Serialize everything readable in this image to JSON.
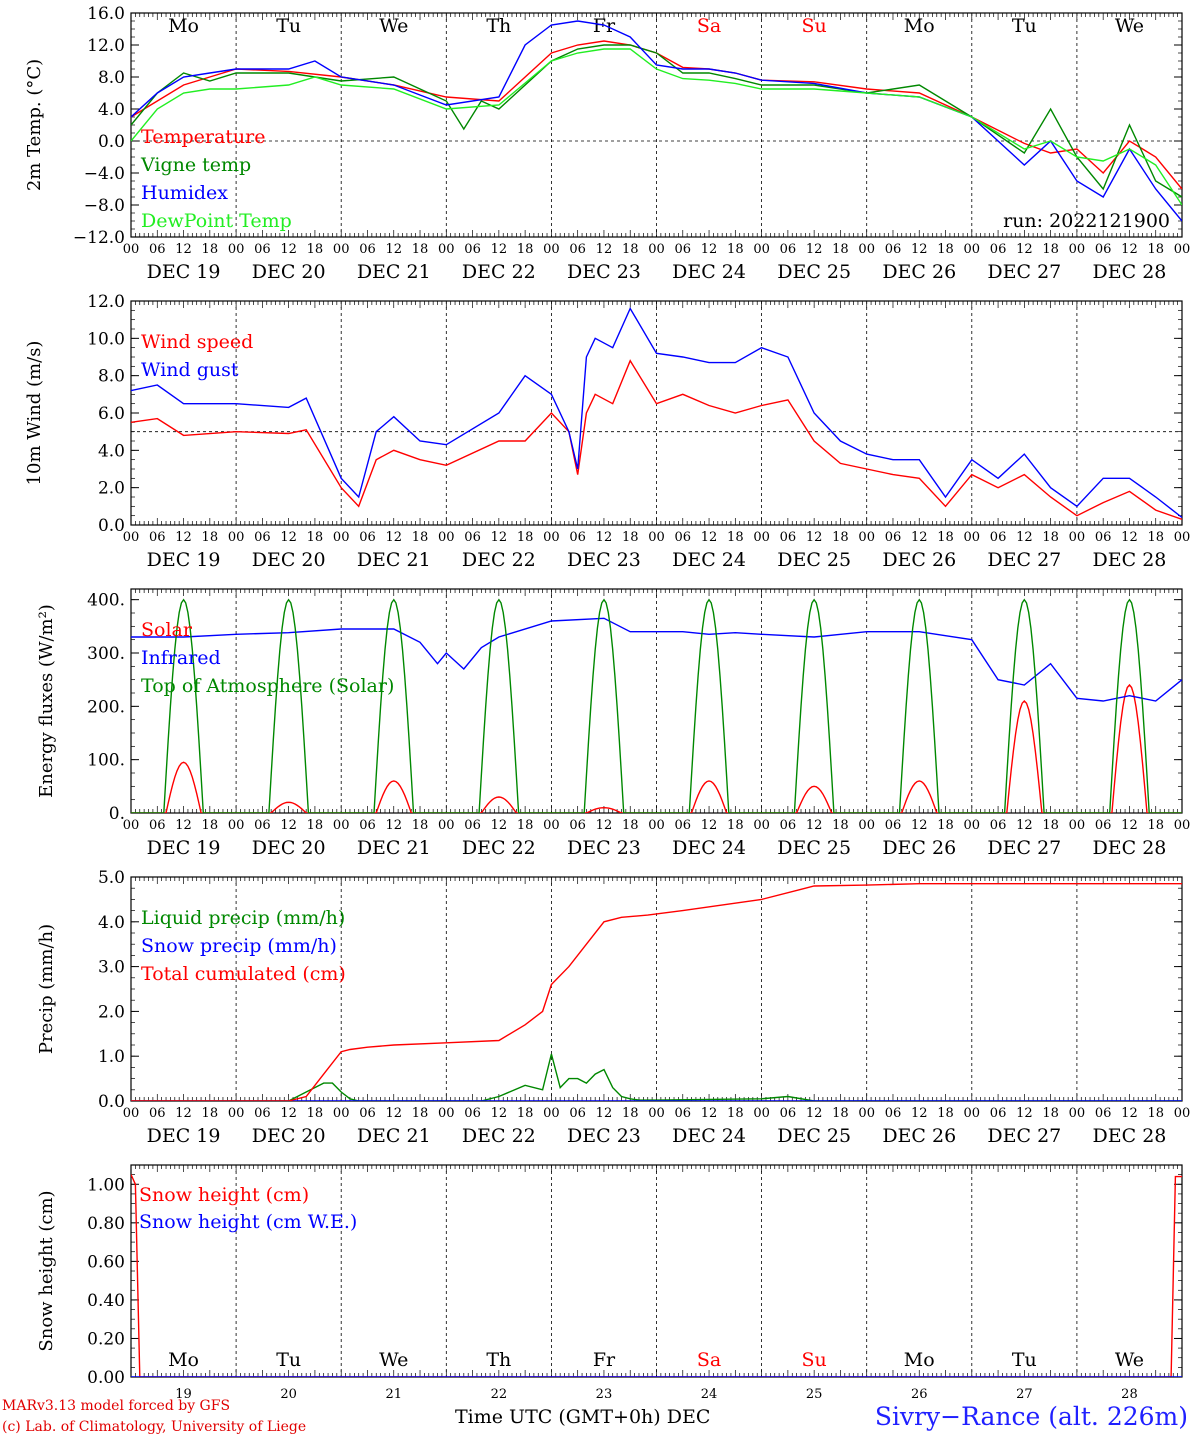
{
  "station_title": "Sivry−Rance (alt. 226m)",
  "credits": [
    "MARv3.13 model forced by GFS",
    "(c) Lab. of Climatology, University of Liege"
  ],
  "x_axis_title": "Time UTC (GMT+0h)",
  "x_axis_month": "DEC",
  "run_label": "run: 2022121900",
  "days": [
    {
      "dow": "Mo",
      "date": "DEC 19",
      "num": "19",
      "weekend": false
    },
    {
      "dow": "Tu",
      "date": "DEC 20",
      "num": "20",
      "weekend": false
    },
    {
      "dow": "We",
      "date": "DEC 21",
      "num": "21",
      "weekend": false
    },
    {
      "dow": "Th",
      "date": "DEC 22",
      "num": "22",
      "weekend": false
    },
    {
      "dow": "Fr",
      "date": "DEC 23",
      "num": "23",
      "weekend": false
    },
    {
      "dow": "Sa",
      "date": "DEC 24",
      "num": "24",
      "weekend": true
    },
    {
      "dow": "Su",
      "date": "DEC 25",
      "num": "25",
      "weekend": true
    },
    {
      "dow": "Mo",
      "date": "DEC 26",
      "num": "26",
      "weekend": false
    },
    {
      "dow": "Tu",
      "date": "DEC 27",
      "num": "27",
      "weekend": false
    },
    {
      "dow": "We",
      "date": "DEC 28",
      "num": "28",
      "weekend": false
    }
  ],
  "hour_ticks": [
    "00",
    "06",
    "12",
    "18"
  ],
  "colors": {
    "red": "#ff0000",
    "green": "#008800",
    "blue": "#0000ff",
    "lightgreen": "#22ee22",
    "weekend": "#ff0000",
    "footer_red": "#e00000",
    "title_blue": "#2020ff"
  },
  "chart_data": [
    {
      "type": "line",
      "ylabel": "2m Temp. (°C)",
      "ylim": [
        -12,
        16
      ],
      "ytick_labels": [
        "−12.0",
        "−8.0",
        "−4.0",
        "0.0",
        "4.0",
        "8.0",
        "12.0",
        "16.0"
      ],
      "yticks": [
        -12,
        -8,
        -4,
        0,
        4,
        8,
        12,
        16
      ],
      "ref_line": 0,
      "show_dow": true,
      "x_hours_range": [
        0,
        240
      ],
      "series": [
        {
          "name": "Temperature",
          "color": "#ff0000",
          "x": [
            0,
            6,
            12,
            18,
            24,
            36,
            48,
            60,
            72,
            84,
            96,
            102,
            108,
            114,
            120,
            126,
            132,
            138,
            144,
            156,
            168,
            180,
            192,
            204,
            210,
            216,
            222,
            228,
            234,
            240
          ],
          "values": [
            3,
            5,
            7,
            8,
            9,
            8.7,
            8,
            7,
            5.5,
            5,
            11,
            12,
            12.5,
            12,
            11,
            9.2,
            9,
            8.5,
            7.6,
            7.4,
            6.5,
            6,
            3,
            -0.3,
            -1.5,
            -1,
            -4,
            0,
            -2,
            -6
          ]
        },
        {
          "name": "Vigne temp",
          "color": "#008800",
          "x": [
            0,
            6,
            12,
            18,
            24,
            36,
            48,
            60,
            72,
            76,
            80,
            84,
            96,
            102,
            108,
            114,
            120,
            126,
            132,
            138,
            144,
            156,
            168,
            180,
            192,
            204,
            210,
            216,
            222,
            228,
            234,
            240
          ],
          "values": [
            2,
            6,
            8.5,
            7.5,
            8.5,
            8.5,
            7.5,
            8,
            5,
            1.5,
            5,
            4,
            10,
            11.5,
            12,
            12,
            11,
            8.5,
            8.5,
            7.8,
            7,
            7,
            6,
            7,
            3,
            -1.5,
            4,
            -2,
            -6,
            2,
            -5,
            -7
          ]
        },
        {
          "name": "Humidex",
          "color": "#0000ff",
          "x": [
            0,
            6,
            12,
            18,
            24,
            36,
            42,
            48,
            60,
            72,
            84,
            90,
            96,
            102,
            108,
            114,
            120,
            126,
            132,
            138,
            144,
            156,
            168,
            180,
            192,
            204,
            210,
            216,
            222,
            228,
            234,
            240
          ],
          "values": [
            3,
            6,
            8,
            8.5,
            9,
            9,
            10,
            8,
            7,
            4.5,
            5.5,
            12,
            14.5,
            15,
            14.5,
            13,
            9.5,
            9,
            9,
            8.5,
            7.6,
            7.2,
            6,
            5.5,
            3,
            -3,
            0,
            -5,
            -7,
            -1,
            -6,
            -10
          ]
        },
        {
          "name": "DewPoint Temp",
          "color": "#22ee22",
          "x": [
            0,
            6,
            12,
            18,
            24,
            36,
            42,
            48,
            60,
            72,
            84,
            96,
            102,
            108,
            114,
            120,
            126,
            132,
            138,
            144,
            156,
            168,
            180,
            192,
            204,
            210,
            216,
            222,
            228,
            234,
            240
          ],
          "values": [
            0,
            4,
            6,
            6.5,
            6.5,
            7,
            8,
            7,
            6.5,
            4,
            4.5,
            10,
            11,
            11.5,
            11.5,
            9,
            7.8,
            7.6,
            7.2,
            6.5,
            6.5,
            6,
            5.5,
            3,
            -1,
            0,
            -2,
            -2.5,
            -1,
            -3,
            -8
          ]
        }
      ]
    },
    {
      "type": "line",
      "ylabel": "10m Wind (m/s)",
      "ylim": [
        0,
        12
      ],
      "ytick_labels": [
        "0.0",
        "2.0",
        "4.0",
        "6.0",
        "8.0",
        "10.0",
        "12.0"
      ],
      "yticks": [
        0,
        2,
        4,
        6,
        8,
        10,
        12
      ],
      "ref_line": 5,
      "show_dow": false,
      "x_hours_range": [
        0,
        240
      ],
      "series": [
        {
          "name": "Wind speed",
          "color": "#ff0000",
          "x": [
            0,
            6,
            12,
            24,
            36,
            40,
            48,
            52,
            56,
            60,
            66,
            72,
            84,
            90,
            96,
            100,
            102,
            104,
            106,
            110,
            114,
            120,
            126,
            132,
            138,
            144,
            150,
            156,
            162,
            168,
            174,
            180,
            186,
            192,
            198,
            204,
            210,
            216,
            222,
            228,
            234,
            240
          ],
          "values": [
            5.5,
            5.7,
            4.8,
            5,
            4.9,
            5.1,
            2,
            1,
            3.5,
            4,
            3.5,
            3.2,
            4.5,
            4.5,
            6,
            5,
            2.7,
            6,
            7,
            6.5,
            8.8,
            6.5,
            7,
            6.4,
            6,
            6.4,
            6.7,
            4.5,
            3.3,
            3,
            2.7,
            2.5,
            1,
            2.7,
            2,
            2.7,
            1.5,
            0.5,
            1.2,
            1.8,
            0.8,
            0.3
          ]
        },
        {
          "name": "Wind gust",
          "color": "#0000ff",
          "x": [
            0,
            6,
            12,
            24,
            36,
            40,
            48,
            52,
            56,
            60,
            66,
            72,
            84,
            90,
            96,
            100,
            102,
            104,
            106,
            110,
            114,
            120,
            126,
            132,
            138,
            144,
            150,
            156,
            162,
            168,
            174,
            180,
            186,
            192,
            198,
            204,
            210,
            216,
            222,
            228,
            234,
            240
          ],
          "values": [
            7.2,
            7.5,
            6.5,
            6.5,
            6.3,
            6.8,
            2.5,
            1.5,
            5,
            5.8,
            4.5,
            4.3,
            6,
            8,
            7,
            5,
            3,
            9,
            10,
            9.5,
            11.6,
            9.2,
            9,
            8.7,
            8.7,
            9.5,
            9,
            6,
            4.5,
            3.8,
            3.5,
            3.5,
            1.5,
            3.5,
            2.5,
            3.8,
            2,
            1,
            2.5,
            2.5,
            1.5,
            0.4
          ]
        }
      ]
    },
    {
      "type": "line",
      "ylabel": "Energy fluxes (W/m²)",
      "ylim": [
        0,
        420
      ],
      "ytick_labels": [
        "0.",
        "100.",
        "200.",
        "300.",
        "400."
      ],
      "yticks": [
        0,
        100,
        200,
        300,
        400
      ],
      "ref_line": null,
      "show_dow": false,
      "x_hours_range": [
        0,
        240
      ],
      "series": [
        {
          "name": "Solar",
          "color": "#ff0000",
          "daily_peaks": [
            95,
            20,
            60,
            30,
            10,
            60,
            50,
            60,
            210,
            240
          ],
          "peak_hour": 12,
          "half_width_h": 4
        },
        {
          "name": "Infrared",
          "color": "#0000ff",
          "x": [
            0,
            12,
            24,
            36,
            48,
            60,
            66,
            70,
            72,
            76,
            80,
            84,
            96,
            108,
            114,
            120,
            126,
            132,
            138,
            144,
            156,
            168,
            180,
            192,
            198,
            204,
            210,
            216,
            222,
            228,
            234,
            240
          ],
          "values": [
            330,
            330,
            335,
            338,
            345,
            345,
            320,
            280,
            300,
            270,
            310,
            330,
            360,
            365,
            340,
            340,
            340,
            335,
            338,
            335,
            330,
            340,
            340,
            325,
            250,
            240,
            280,
            215,
            210,
            220,
            210,
            250
          ]
        },
        {
          "name": "Top of Atmosphere (Solar)",
          "color": "#008800",
          "daily_peaks": [
            400,
            400,
            400,
            400,
            400,
            400,
            400,
            400,
            400,
            400
          ],
          "peak_hour": 12,
          "half_width_h": 4.5
        }
      ]
    },
    {
      "type": "line",
      "ylabel": "Precip (mm/h)",
      "ylim": [
        0,
        5
      ],
      "ytick_labels": [
        "0.0",
        "1.0",
        "2.0",
        "3.0",
        "4.0",
        "5.0"
      ],
      "yticks": [
        0,
        1,
        2,
        3,
        4,
        5
      ],
      "ref_line": null,
      "show_dow": false,
      "x_hours_range": [
        0,
        240
      ],
      "series": [
        {
          "name": "Liquid precip (mm/h)",
          "color": "#008800",
          "x": [
            0,
            36,
            40,
            44,
            46,
            48,
            50,
            52,
            80,
            84,
            90,
            94,
            96,
            98,
            100,
            102,
            104,
            106,
            108,
            110,
            112,
            114,
            116,
            120,
            144,
            150,
            156,
            240
          ],
          "values": [
            0,
            0,
            0.2,
            0.4,
            0.4,
            0.2,
            0.05,
            0,
            0,
            0.1,
            0.35,
            0.25,
            1.05,
            0.3,
            0.5,
            0.5,
            0.4,
            0.6,
            0.7,
            0.3,
            0.1,
            0.05,
            0.02,
            0.02,
            0.05,
            0.1,
            0,
            0
          ]
        },
        {
          "name": "Snow precip (mm/h)",
          "color": "#0000ff",
          "x": [
            0,
            240
          ],
          "values": [
            0,
            0
          ]
        },
        {
          "name": "Total cumulated (cm)",
          "color": "#ff0000",
          "x": [
            0,
            36,
            40,
            44,
            48,
            50,
            54,
            60,
            72,
            84,
            90,
            94,
            96,
            100,
            104,
            108,
            112,
            118,
            126,
            144,
            156,
            168,
            180,
            192,
            240
          ],
          "values": [
            0,
            0,
            0.1,
            0.6,
            1.1,
            1.15,
            1.2,
            1.25,
            1.3,
            1.35,
            1.7,
            2,
            2.6,
            3,
            3.5,
            4,
            4.1,
            4.15,
            4.25,
            4.5,
            4.8,
            4.82,
            4.85,
            4.85,
            4.85
          ]
        }
      ]
    },
    {
      "type": "line",
      "ylabel": "Snow height (cm)",
      "ylim": [
        0,
        1.1
      ],
      "ytick_labels": [
        "0.00",
        "0.20",
        "0.40",
        "0.60",
        "0.80",
        "1.00"
      ],
      "yticks": [
        0,
        0.2,
        0.4,
        0.6,
        0.8,
        1.0
      ],
      "ref_line": null,
      "show_dow": true,
      "x_hours_range": [
        0,
        240
      ],
      "series": [
        {
          "name": "Snow height (cm)",
          "color": "#ff0000",
          "x": [
            0,
            1,
            2,
            237.5,
            238.5,
            240
          ],
          "values": [
            1.05,
            1.0,
            0,
            0,
            1.04,
            1.04
          ]
        },
        {
          "name": "Snow height (cm W.E.)",
          "color": "#0000ff",
          "x": [
            0,
            240
          ],
          "values": [
            0,
            0
          ]
        }
      ]
    }
  ]
}
